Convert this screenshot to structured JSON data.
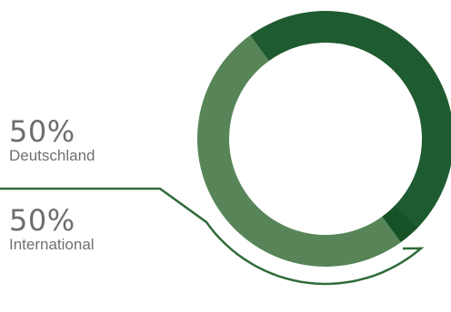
{
  "chart_data": {
    "type": "pie",
    "donut": true,
    "slices": [
      {
        "label": "Deutschland",
        "value": 50,
        "display": "50%",
        "color": "#1f5b30"
      },
      {
        "label": "International",
        "value": 50,
        "display": "50%",
        "color": "#578558"
      }
    ],
    "legend": "left",
    "connector_color": "#2f6b3a"
  }
}
